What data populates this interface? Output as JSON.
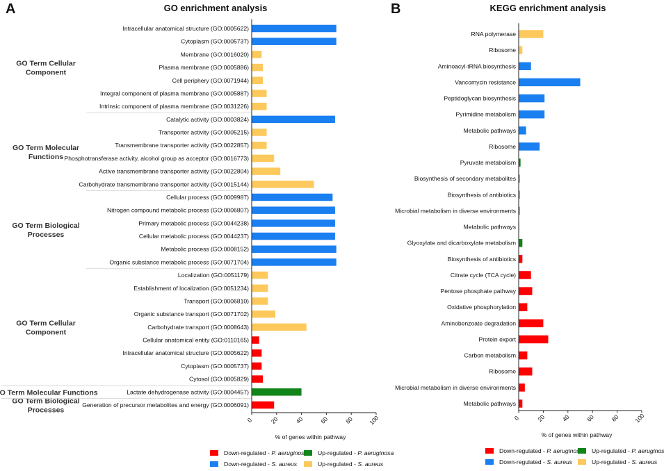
{
  "colors": {
    "down_pa": "#ff0000",
    "down_sa": "#1a7ff0",
    "up_pa": "#11841a",
    "up_sa": "#fdc95c"
  },
  "legend": [
    {
      "key": "down_pa",
      "prefix": "Down-regulated - ",
      "species": "P. aeruginosa"
    },
    {
      "key": "down_sa",
      "prefix": "Down-regulated - ",
      "species": "S. aureus"
    },
    {
      "key": "up_pa",
      "prefix": "Up-regulated - ",
      "species": "P. aeruginosa"
    },
    {
      "key": "up_sa",
      "prefix": "Up-regulated - ",
      "species": "S. aureus"
    }
  ],
  "chart_data": [
    {
      "panel": "A",
      "type": "bar",
      "orientation": "horizontal",
      "title": "GO enrichment analysis",
      "xlabel": "% of genes within pathway",
      "xlim": [
        0,
        100
      ],
      "xticks": [
        0,
        20,
        40,
        60,
        80,
        100
      ],
      "groups": [
        {
          "label": [
            "GO Term Cellular",
            "Component"
          ],
          "start": 0,
          "end": 6
        },
        {
          "label": [
            "GO Term Molecular",
            "Functions"
          ],
          "start": 7,
          "end": 12
        },
        {
          "label": [
            "GO Term Biological",
            "Processes"
          ],
          "start": 13,
          "end": 18
        },
        {
          "label": [
            "GO Term Cellular",
            "Component"
          ],
          "start": 19,
          "end": 27
        },
        {
          "label": [
            "GO Term Molecular Functions"
          ],
          "start": 28,
          "end": 28
        },
        {
          "label": [
            "GO Term Biological",
            "Processes"
          ],
          "start": 29,
          "end": 29
        }
      ],
      "bars": [
        {
          "label": "Intracellular anatomical structure (GO:0005622)",
          "value": 68,
          "series": "down_sa"
        },
        {
          "label": "Cytoplasm (GO:0005737)",
          "value": 68,
          "series": "down_sa"
        },
        {
          "label": "Membrane (GO:0016020)",
          "value": 8,
          "series": "up_sa"
        },
        {
          "label": "Plasma membrane (GO:0005886)",
          "value": 9,
          "series": "up_sa"
        },
        {
          "label": "Cell periphery (GO:0071944)",
          "value": 9,
          "series": "up_sa"
        },
        {
          "label": "Integral component of plasma membrane (GO:0005887)",
          "value": 12,
          "series": "up_sa"
        },
        {
          "label": "Intrinsic component of plasma membrane (GO:0031226)",
          "value": 12,
          "series": "up_sa"
        },
        {
          "label": "Catalytic activity (GO:0003824)",
          "value": 67,
          "series": "down_sa"
        },
        {
          "label": "Transporter activity (GO:0005215)",
          "value": 12,
          "series": "up_sa"
        },
        {
          "label": "Transmembrane transporter activity (GO:0022857)",
          "value": 12,
          "series": "up_sa"
        },
        {
          "label": "Phosphotransferase activity, alcohol group as acceptor (GO:0016773)",
          "value": 18,
          "series": "up_sa"
        },
        {
          "label": "Active transmembrane transporter activity (GO:0022804)",
          "value": 23,
          "series": "up_sa"
        },
        {
          "label": "Carbohydrate transmembrane transporter activity (GO:0015144)",
          "value": 50,
          "series": "up_sa"
        },
        {
          "label": "Cellular process (GO:0009987)",
          "value": 65,
          "series": "down_sa"
        },
        {
          "label": "Nitrogen compound metabolic process (GO:0006807)",
          "value": 67,
          "series": "down_sa"
        },
        {
          "label": "Primary metabolic process (GO:0044238)",
          "value": 67,
          "series": "down_sa"
        },
        {
          "label": "Cellular metabolic process (GO:0044237)",
          "value": 67,
          "series": "down_sa"
        },
        {
          "label": "Metabolic process (GO:0008152)",
          "value": 68,
          "series": "down_sa"
        },
        {
          "label": "Organic substance metabolic process (GO:0071704)",
          "value": 68,
          "series": "down_sa"
        },
        {
          "label": "Localization (GO:0051179)",
          "value": 13,
          "series": "up_sa"
        },
        {
          "label": "Establishment of localization (GO:0051234)",
          "value": 13,
          "series": "up_sa"
        },
        {
          "label": "Transport (GO:0006810)",
          "value": 13,
          "series": "up_sa"
        },
        {
          "label": "Organic substance transport (GO:0071702)",
          "value": 19,
          "series": "up_sa"
        },
        {
          "label": "Carbohydrate transport (GO:0008643)",
          "value": 44,
          "series": "up_sa"
        },
        {
          "label": "Cellular anatomical entity (GO:0110165)",
          "value": 6,
          "series": "down_pa"
        },
        {
          "label": "Intracellular anatomical structure (GO:0005622)",
          "value": 8,
          "series": "down_pa"
        },
        {
          "label": "Cytoplasm (GO:0005737)",
          "value": 8,
          "series": "down_pa"
        },
        {
          "label": "Cytosol (GO:0005829)",
          "value": 9,
          "series": "down_pa"
        },
        {
          "label": "Lactate dehydrogenase activity (GO:0004457)",
          "value": 40,
          "series": "up_pa"
        },
        {
          "label": "Generation of precursor metabolites and energy (GO:0006091)",
          "value": 18,
          "series": "down_pa"
        }
      ]
    },
    {
      "panel": "B",
      "type": "bar",
      "orientation": "horizontal",
      "title": "KEGG enrichment analysis",
      "xlabel": "% of genes within pathway",
      "xlim": [
        0,
        100
      ],
      "xticks": [
        0,
        20,
        40,
        60,
        80,
        100
      ],
      "bars": [
        {
          "label": "RNA polymerase",
          "value": 20,
          "series": "up_sa"
        },
        {
          "label": "Ribosome",
          "value": 3,
          "series": "up_sa"
        },
        {
          "label": "Aminoacyl-tRNA biosynthesis",
          "value": 10,
          "series": "down_sa"
        },
        {
          "label": "Vancomycin resistance",
          "value": 50,
          "series": "down_sa"
        },
        {
          "label": "Peptidoglycan biosynthesis",
          "value": 21,
          "series": "down_sa"
        },
        {
          "label": "Pyrimidine metabolism",
          "value": 21,
          "series": "down_sa"
        },
        {
          "label": "Metabolic pathways",
          "value": 6,
          "series": "down_sa"
        },
        {
          "label": "Ribosome",
          "value": 17,
          "series": "down_sa"
        },
        {
          "label": "Pyruvate metabolism",
          "value": 1.5,
          "series": "up_pa"
        },
        {
          "label": "Biosynthesis of secondary metabolites",
          "value": 0.8,
          "series": "up_pa"
        },
        {
          "label": "Biosynthesis of antibiotics",
          "value": 0.8,
          "series": "up_pa"
        },
        {
          "label": "Microbial metabolism in diverse environments",
          "value": 0.8,
          "series": "up_pa"
        },
        {
          "label": "Metabolic pathways",
          "value": 0.4,
          "series": "up_pa"
        },
        {
          "label": "Glyoxylate and dicarboxylate metabolism",
          "value": 3,
          "series": "up_pa"
        },
        {
          "label": "Biosynthesis of antibiotics",
          "value": 3,
          "series": "down_pa"
        },
        {
          "label": "Citrate cycle (TCA cycle)",
          "value": 10,
          "series": "down_pa"
        },
        {
          "label": "Pentose phosphate pathway",
          "value": 11,
          "series": "down_pa"
        },
        {
          "label": "Oxidative phosphorylation",
          "value": 7,
          "series": "down_pa"
        },
        {
          "label": "Aminobenzoate degradation",
          "value": 20,
          "series": "down_pa"
        },
        {
          "label": "Protein export",
          "value": 24,
          "series": "down_pa"
        },
        {
          "label": "Carbon metabolism",
          "value": 7,
          "series": "down_pa"
        },
        {
          "label": "Ribosome",
          "value": 11,
          "series": "down_pa"
        },
        {
          "label": "Microbial metabolism in diverse environments",
          "value": 5,
          "series": "down_pa"
        },
        {
          "label": "Metabolic pathways",
          "value": 3,
          "series": "down_pa"
        }
      ]
    }
  ]
}
